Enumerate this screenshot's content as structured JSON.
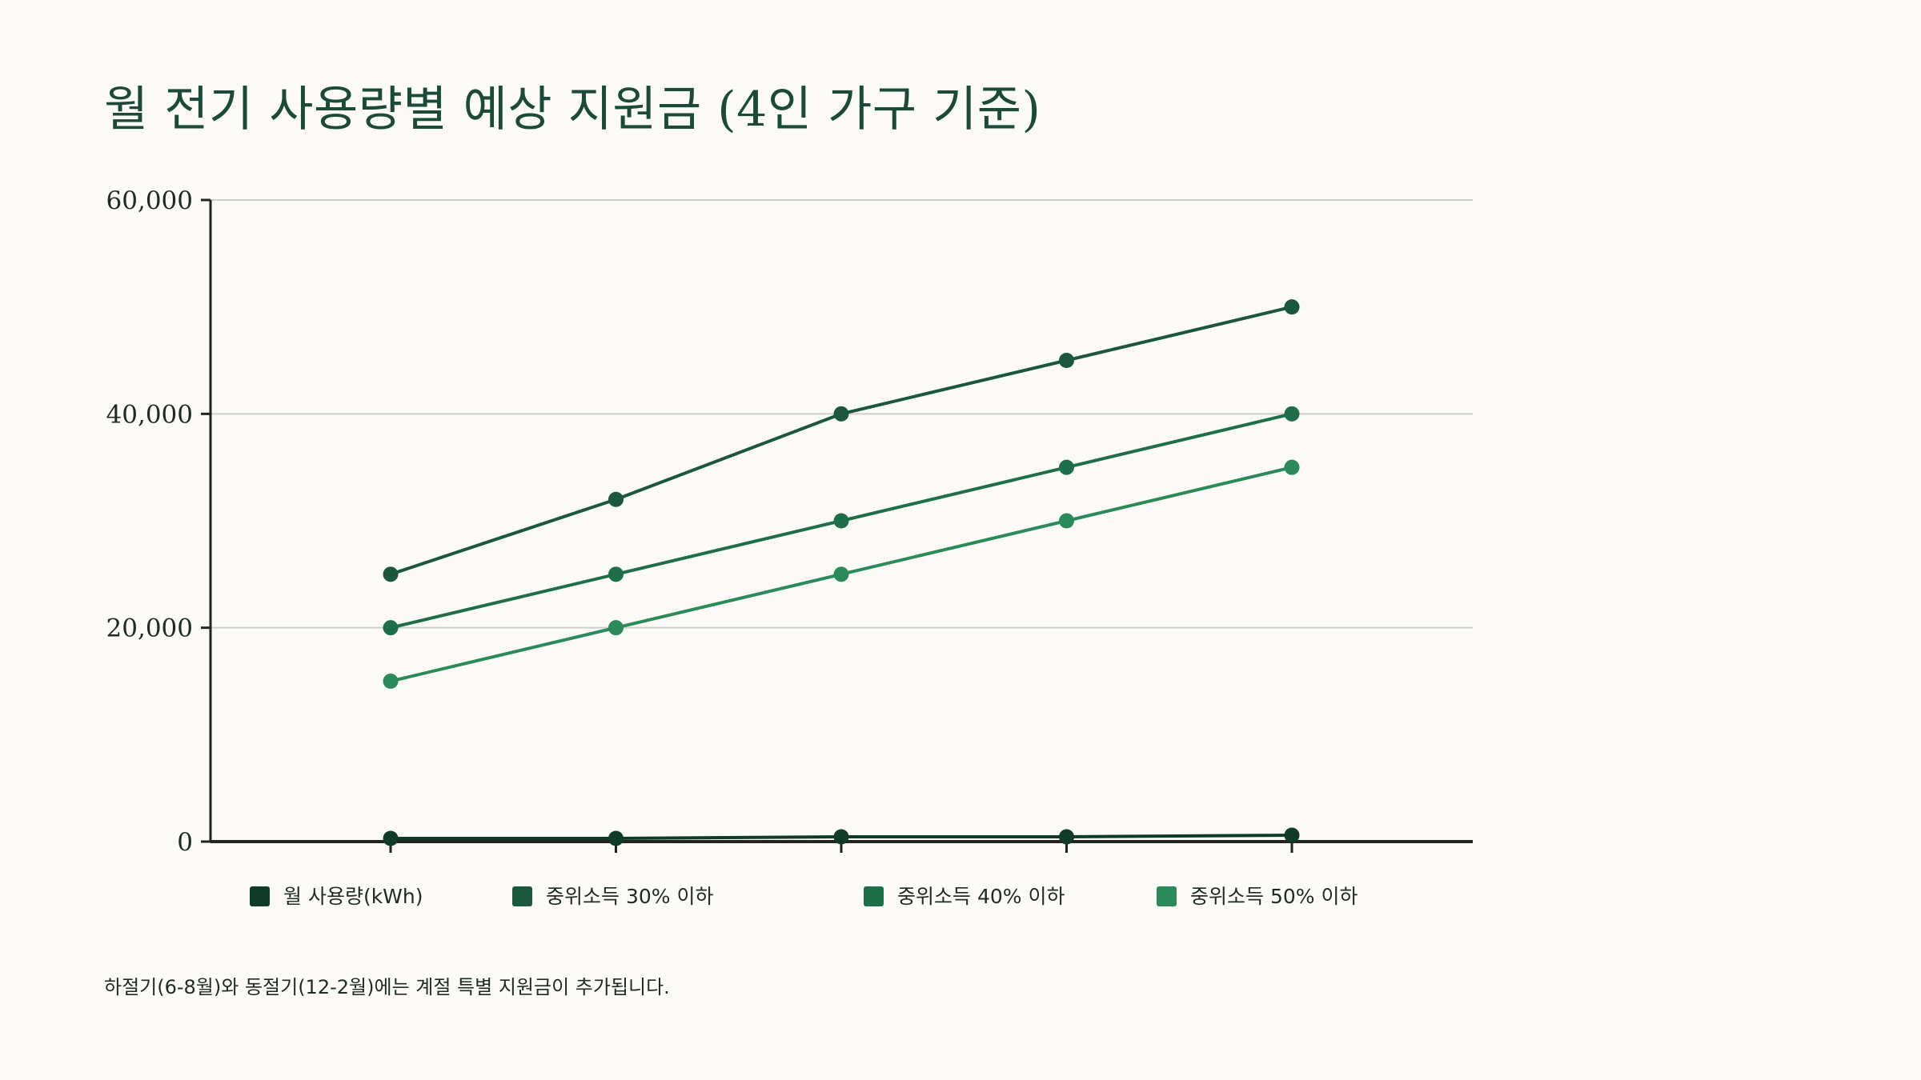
{
  "title": "월 전기 사용량별 예상 지원금 (4인 가구 기준)",
  "footnote": "하절기(6-8월)와 동절기(12-2월)에는 계절 특별 지원금이 추가됩니다.",
  "chart_data": {
    "type": "line",
    "title": "월 전기 사용량별 예상 지원금 (4인 가구 기준)",
    "xlabel": "",
    "ylabel": "",
    "ylim": [
      0,
      60000
    ],
    "yticks": [
      0,
      20000,
      40000,
      60000
    ],
    "ytick_labels": [
      "0",
      "20,000",
      "40,000",
      "60,000"
    ],
    "grid": true,
    "legend_position": "bottom",
    "x": [
      1,
      2,
      3,
      4,
      5
    ],
    "series": [
      {
        "name": "월 사용량(kWh)",
        "color": "#0f3b28",
        "values": [
          300,
          300,
          450,
          450,
          600
        ]
      },
      {
        "name": "중위소득 30% 이하",
        "color": "#1b573c",
        "values": [
          25000,
          32000,
          40000,
          45000,
          50000
        ]
      },
      {
        "name": "중위소득 40% 이하",
        "color": "#1f6e4a",
        "values": [
          20000,
          25000,
          30000,
          35000,
          40000
        ]
      },
      {
        "name": "중위소득 50% 이하",
        "color": "#2a8a5a",
        "values": [
          15000,
          20000,
          25000,
          30000,
          35000
        ]
      }
    ]
  }
}
